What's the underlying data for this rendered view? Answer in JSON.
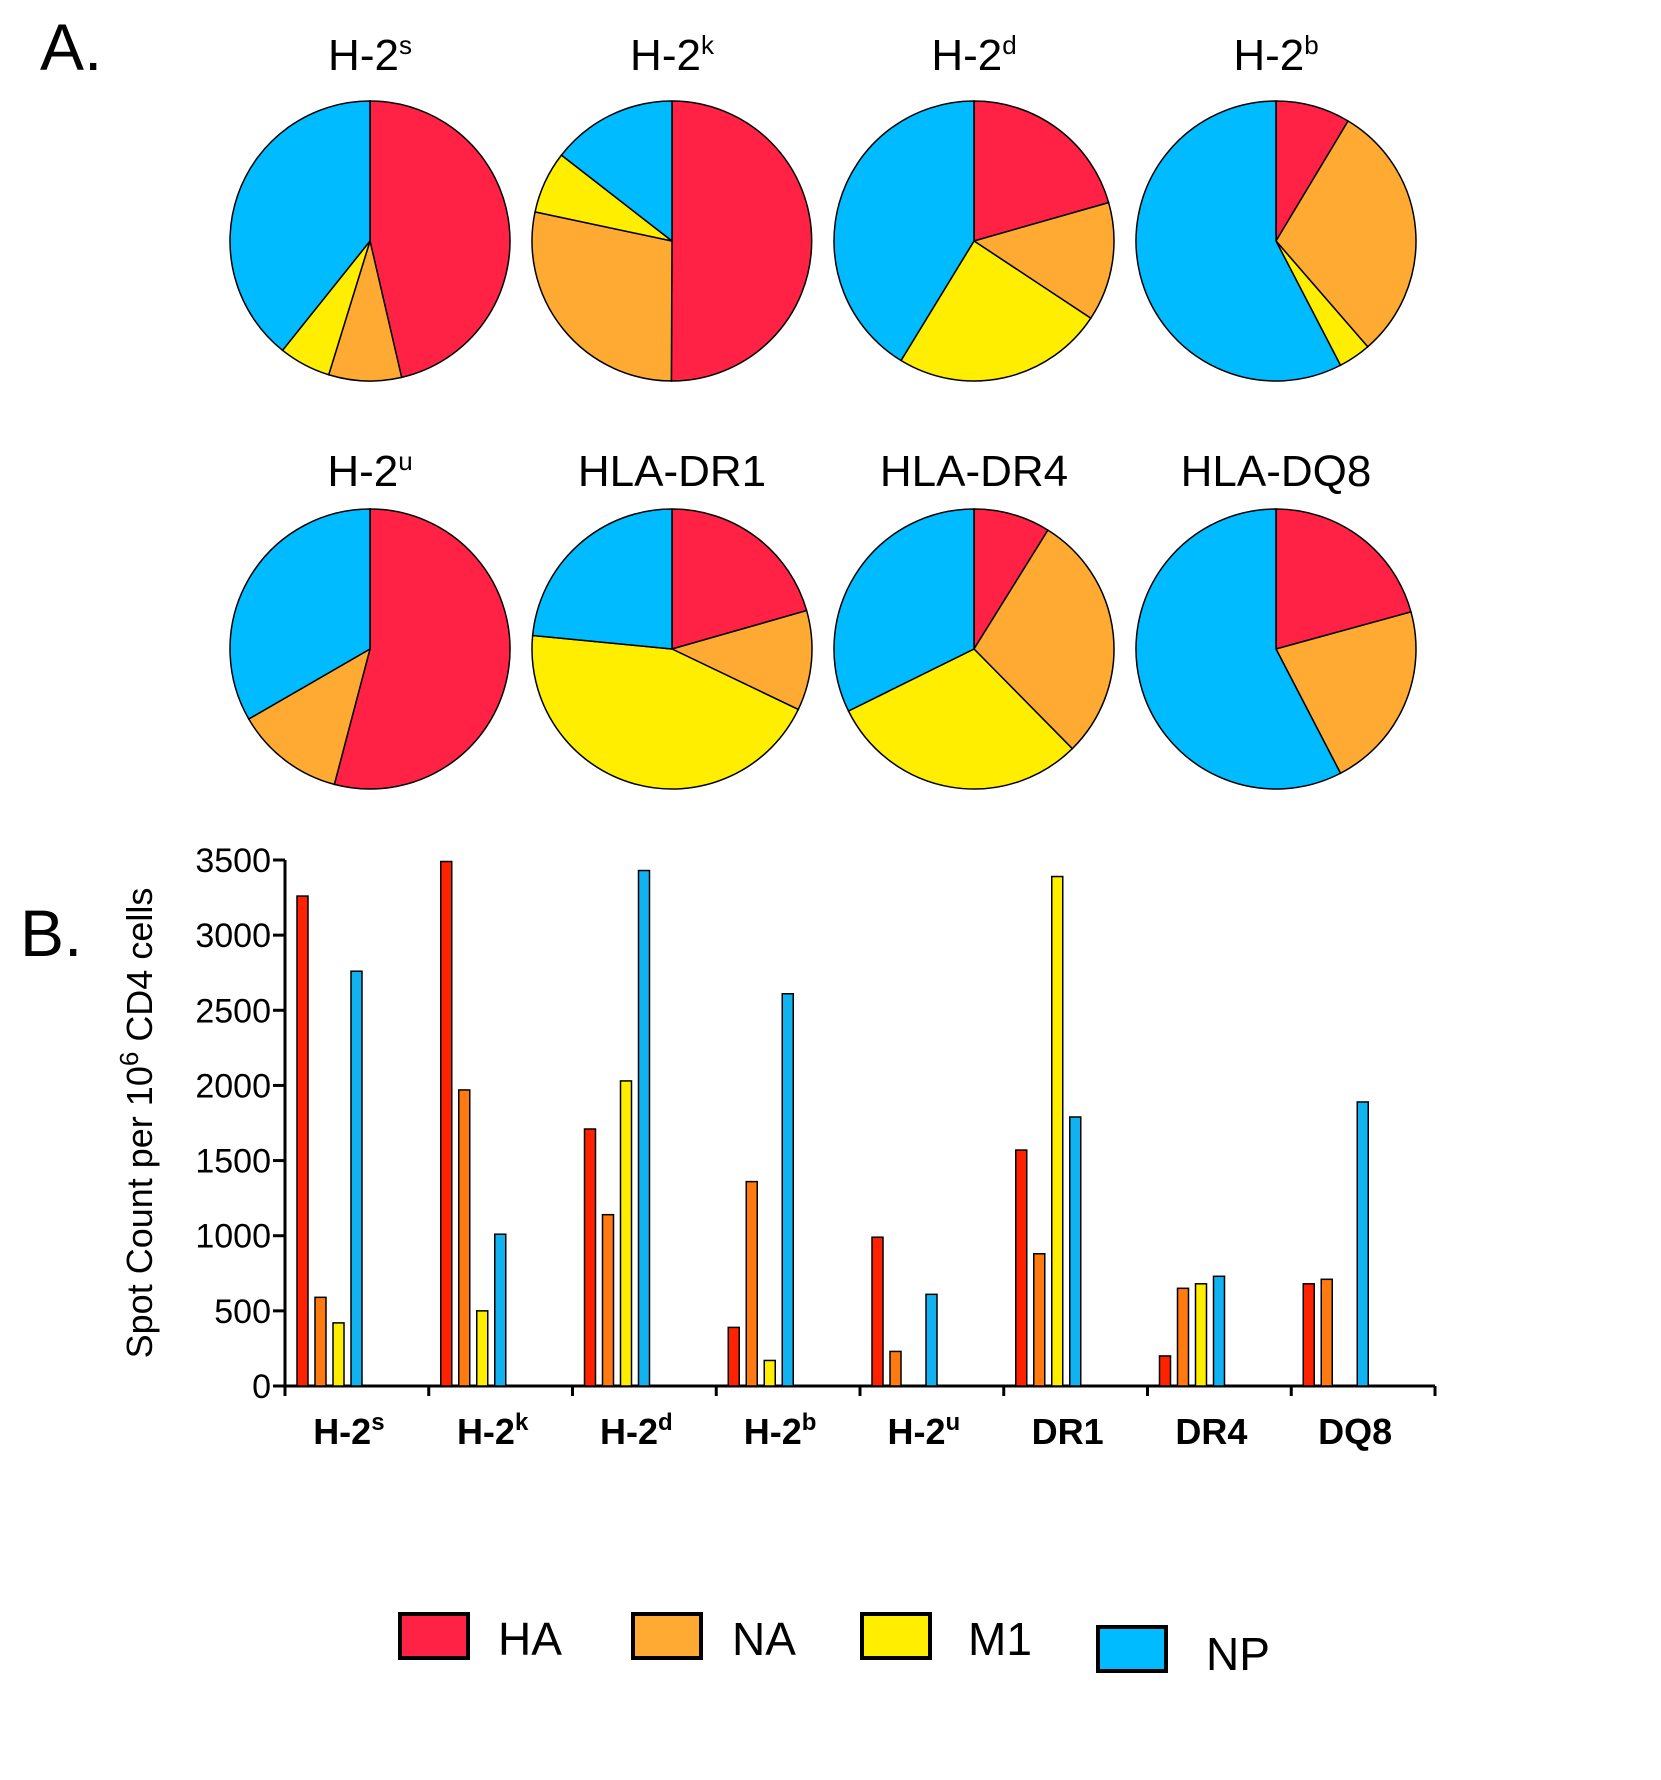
{
  "panels": {
    "a_label": "A.",
    "b_label": "B."
  },
  "colors": {
    "HA": "#ff2244",
    "NA": "#ffaa33",
    "M1": "#ffee00",
    "NP": "#00bbff",
    "bar_HA": "#ff2200",
    "bar_NA": "#ff7a10",
    "bar_M1": "#ffee00",
    "bar_NP": "#11b2f0"
  },
  "chart_data": [
    {
      "type": "pie",
      "panel": "A",
      "slice_order": [
        "HA",
        "NA",
        "M1",
        "NP"
      ],
      "series": [
        {
          "name": "H-2",
          "sup": "s",
          "title": "H-2s",
          "values": [
            3260,
            590,
            420,
            2760
          ]
        },
        {
          "name": "H-2",
          "sup": "k",
          "title": "H-2k",
          "values": [
            3490,
            1970,
            500,
            1010
          ]
        },
        {
          "name": "H-2",
          "sup": "d",
          "title": "H-2d",
          "values": [
            1710,
            1140,
            2030,
            3430
          ]
        },
        {
          "name": "H-2",
          "sup": "b",
          "title": "H-2b",
          "values": [
            390,
            1360,
            170,
            2610
          ]
        },
        {
          "name": "H-2",
          "sup": "u",
          "title": "H-2u",
          "values": [
            990,
            230,
            0,
            610
          ]
        },
        {
          "name": "HLA-DR1",
          "sup": "",
          "title": "HLA-DR1",
          "values": [
            1570,
            880,
            3390,
            1790
          ]
        },
        {
          "name": "HLA-DR4",
          "sup": "",
          "title": "HLA-DR4",
          "values": [
            200,
            650,
            680,
            730
          ]
        },
        {
          "name": "HLA-DQ8",
          "sup": "",
          "title": "HLA-DQ8",
          "values": [
            680,
            710,
            0,
            1890
          ]
        }
      ]
    },
    {
      "type": "bar",
      "panel": "B",
      "title": "",
      "xlabel": "",
      "ylabel": "Spot Count per 10",
      "ylabel_sup": "6",
      "ylabel_suffix": " CD4 cells",
      "ylim": [
        0,
        3500
      ],
      "yticks": [
        0,
        500,
        1000,
        1500,
        2000,
        2500,
        3000,
        3500
      ],
      "categories": [
        {
          "name": "H-2",
          "sup": "s"
        },
        {
          "name": "H-2",
          "sup": "k"
        },
        {
          "name": "H-2",
          "sup": "d"
        },
        {
          "name": "H-2",
          "sup": "b"
        },
        {
          "name": "H-2",
          "sup": "u"
        },
        {
          "name": "DR1",
          "sup": ""
        },
        {
          "name": "DR4",
          "sup": ""
        },
        {
          "name": "DQ8",
          "sup": ""
        }
      ],
      "series": [
        {
          "name": "HA",
          "values": [
            3260,
            3490,
            1710,
            390,
            990,
            1570,
            200,
            680
          ]
        },
        {
          "name": "NA",
          "values": [
            590,
            1970,
            1140,
            1360,
            230,
            880,
            650,
            710
          ]
        },
        {
          "name": "M1",
          "values": [
            420,
            500,
            2030,
            170,
            0,
            3390,
            680,
            0
          ]
        },
        {
          "name": "NP",
          "values": [
            2760,
            1010,
            3430,
            2610,
            610,
            1790,
            730,
            1890
          ]
        }
      ],
      "legend": [
        "HA",
        "NA",
        "M1",
        "NP"
      ],
      "legend_position": "bottom"
    }
  ]
}
